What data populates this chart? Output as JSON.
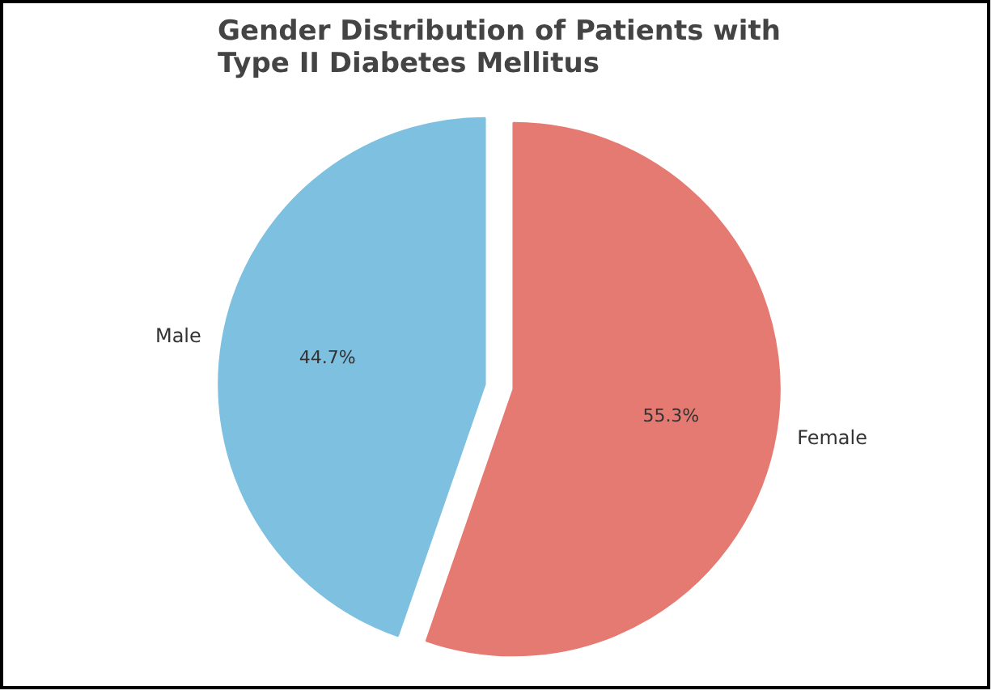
{
  "chart_data": {
    "type": "pie",
    "title": "Gender Distribution of Patients with\nType II Diabetes Mellitus",
    "categories": [
      "Female",
      "Male"
    ],
    "values": [
      55.3,
      44.7
    ],
    "colors": [
      "#e57a72",
      "#7ec0e0"
    ],
    "value_labels": [
      "55.3%",
      "44.7%"
    ]
  }
}
